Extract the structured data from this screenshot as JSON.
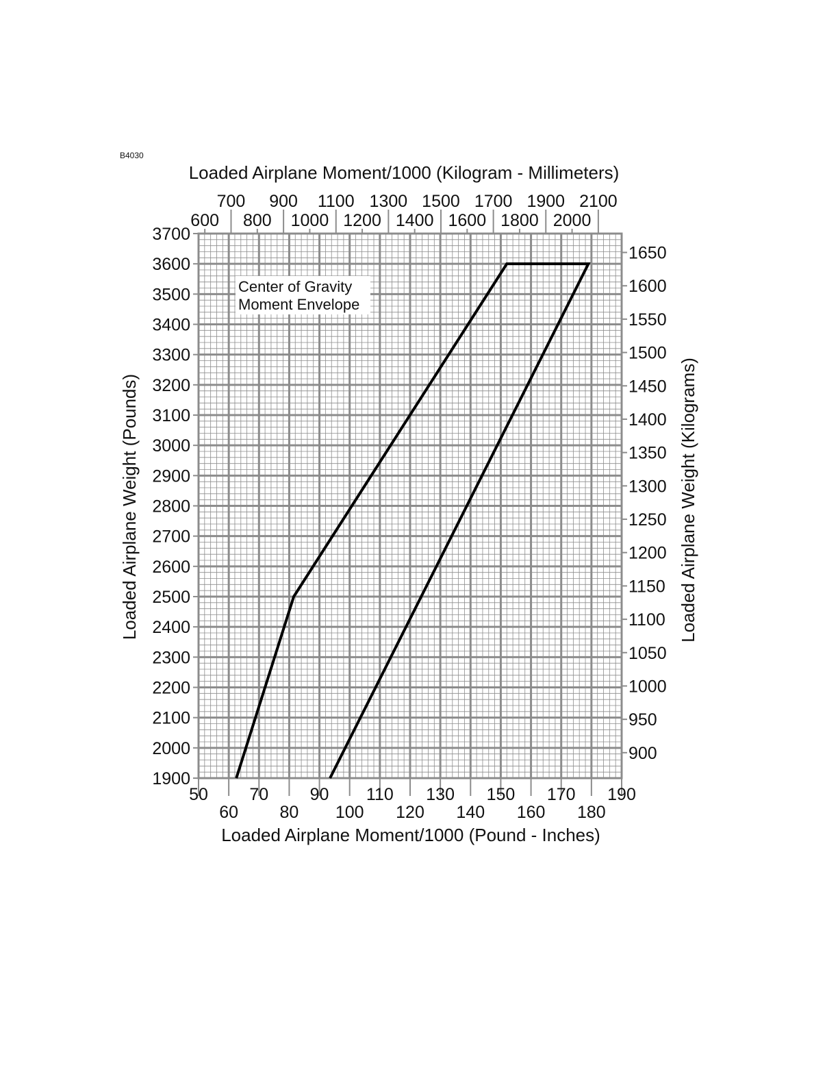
{
  "figure_id": "B4030",
  "chart_data": {
    "type": "line",
    "title": "Center of Gravity Moment Envelope",
    "x_bottom": {
      "label": "Loaded Airplane Moment/1000 (Pound - Inches)",
      "range": [
        50,
        190
      ],
      "ticks_row1": [
        "50",
        "70",
        "90",
        "110",
        "130",
        "150",
        "170",
        "190"
      ],
      "ticks_row2": [
        "60",
        "80",
        "100",
        "120",
        "140",
        "160",
        "180"
      ]
    },
    "x_top": {
      "label": "Loaded Airplane Moment/1000 (Kilogram - Millimeters)",
      "ticks_row1": [
        "700",
        "900",
        "1100",
        "1300",
        "1500",
        "1700",
        "1900",
        "2100"
      ],
      "ticks_row2": [
        "600",
        "800",
        "1000",
        "1200",
        "1400",
        "1600",
        "1800",
        "2000"
      ]
    },
    "y_left": {
      "label": "Loaded Airplane Weight (Pounds)",
      "range": [
        1900,
        3700
      ],
      "ticks": [
        "1900",
        "2000",
        "2100",
        "2200",
        "2300",
        "2400",
        "2500",
        "2600",
        "2700",
        "2800",
        "2900",
        "3000",
        "3100",
        "3200",
        "3300",
        "3400",
        "3500",
        "3600",
        "3700"
      ]
    },
    "y_right": {
      "label": "Loaded Airplane Weight (Kilograms)",
      "ticks": [
        "900",
        "950",
        "1000",
        "1050",
        "1100",
        "1150",
        "1200",
        "1250",
        "1300",
        "1350",
        "1400",
        "1450",
        "1500",
        "1550",
        "1600",
        "1650"
      ]
    },
    "grid": true,
    "envelope": [
      {
        "x": 62.5,
        "y": 1900
      },
      {
        "x": 81.5,
        "y": 2500
      },
      {
        "x": 152,
        "y": 3600
      },
      {
        "x": 179,
        "y": 3600
      },
      {
        "x": 93.5,
        "y": 1900
      }
    ],
    "line_color": "#000000",
    "grid_color": "#8c8c8c"
  }
}
